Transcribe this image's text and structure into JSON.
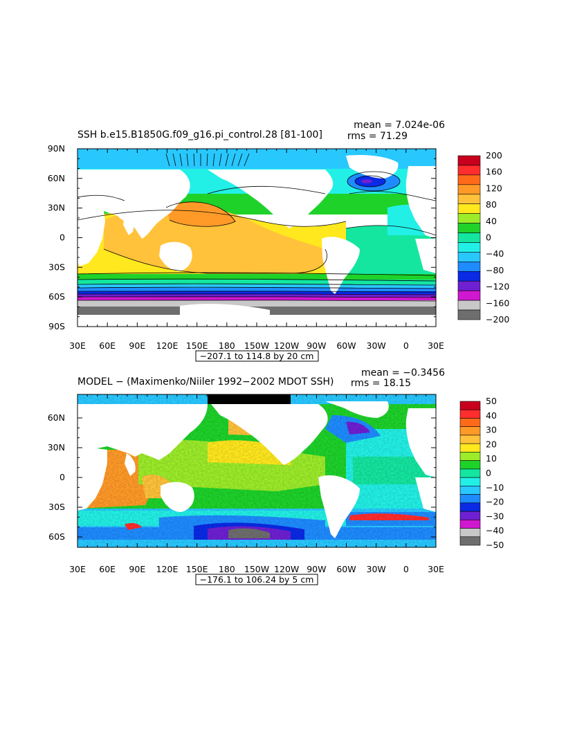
{
  "chart_data": [
    {
      "type": "heatmap",
      "title": "SSH b.e15.B1850G.f09_g16.pi_control.28 [81-100]",
      "mean_text": "mean = 7.024e-06",
      "rms_text": "rms = 71.29",
      "range_text": "−207.1 to 114.8 by 20 cm",
      "x_ticks": [
        "30E",
        "60E",
        "90E",
        "120E",
        "150E",
        "180",
        "150W",
        "120W",
        "90W",
        "60W",
        "30W",
        "0",
        "30E"
      ],
      "y_ticks": [
        "90N",
        "60N",
        "30N",
        "0",
        "30S",
        "60S",
        "90S"
      ],
      "colorbar_labels": [
        "200",
        "160",
        "120",
        "80",
        "40",
        "0",
        "−40",
        "−80",
        "−120",
        "−160",
        "−200"
      ],
      "colorbar_colors": [
        "#c8001e",
        "#ff2d2d",
        "#ff6a1a",
        "#ff9a28",
        "#ffc23a",
        "#ffe81e",
        "#9cec2a",
        "#1ed22a",
        "#14e6a0",
        "#22f0e6",
        "#28c8ff",
        "#1e8cff",
        "#0a2ae6",
        "#6e20d2",
        "#d018d0",
        "#c8c8c8",
        "#6e6e6e"
      ],
      "ylim": [
        -90,
        90
      ],
      "xlim": [
        30,
        390
      ]
    },
    {
      "type": "heatmap",
      "title": "MODEL − (Maximenko/Niiler 1992−2002 MDOT SSH)",
      "mean_text": "mean = −0.3456",
      "rms_text": "rms = 18.15",
      "range_text": "−176.1 to 106.24 by 5 cm",
      "x_ticks": [
        "30E",
        "60E",
        "90E",
        "120E",
        "150E",
        "180",
        "150W",
        "120W",
        "90W",
        "60W",
        "30W",
        "0",
        "30E"
      ],
      "y_ticks": [
        "60N",
        "30N",
        "0",
        "30S",
        "60S"
      ],
      "colorbar_labels": [
        "50",
        "40",
        "30",
        "20",
        "10",
        "0",
        "−10",
        "−20",
        "−30",
        "−40",
        "−50"
      ],
      "colorbar_colors": [
        "#c8001e",
        "#ff2d2d",
        "#ff6a1a",
        "#ff9a28",
        "#ffc23a",
        "#ffe81e",
        "#9cec2a",
        "#1ed22a",
        "#14e6a0",
        "#22f0e6",
        "#28c8ff",
        "#1e8cff",
        "#0a2ae6",
        "#6e20d2",
        "#d018d0",
        "#c8c8c8",
        "#6e6e6e"
      ],
      "ylim": [
        -73,
        80
      ],
      "xlim": [
        30,
        390
      ]
    }
  ]
}
